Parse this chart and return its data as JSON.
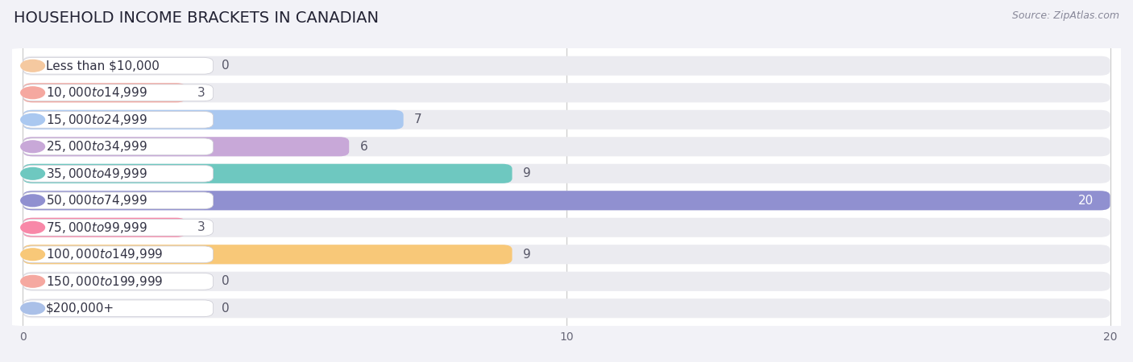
{
  "title": "HOUSEHOLD INCOME BRACKETS IN CANADIAN",
  "source": "Source: ZipAtlas.com",
  "categories": [
    "Less than $10,000",
    "$10,000 to $14,999",
    "$15,000 to $24,999",
    "$25,000 to $34,999",
    "$35,000 to $49,999",
    "$50,000 to $74,999",
    "$75,000 to $99,999",
    "$100,000 to $149,999",
    "$150,000 to $199,999",
    "$200,000+"
  ],
  "values": [
    0,
    3,
    7,
    6,
    9,
    20,
    3,
    9,
    0,
    0
  ],
  "bar_colors": [
    "#f5c9a0",
    "#f5a8a0",
    "#aac8f0",
    "#c8a8d8",
    "#6ec8c0",
    "#9090d0",
    "#f888a8",
    "#f8c878",
    "#f5a8a0",
    "#aac0e8"
  ],
  "xlim": [
    0,
    20
  ],
  "xticks": [
    0,
    10,
    20
  ],
  "fig_bg": "#f2f2f7",
  "chart_bg": "#ffffff",
  "row_bg": "#ebebf0",
  "title_fontsize": 14,
  "label_fontsize": 11,
  "value_fontsize": 11,
  "source_fontsize": 9
}
